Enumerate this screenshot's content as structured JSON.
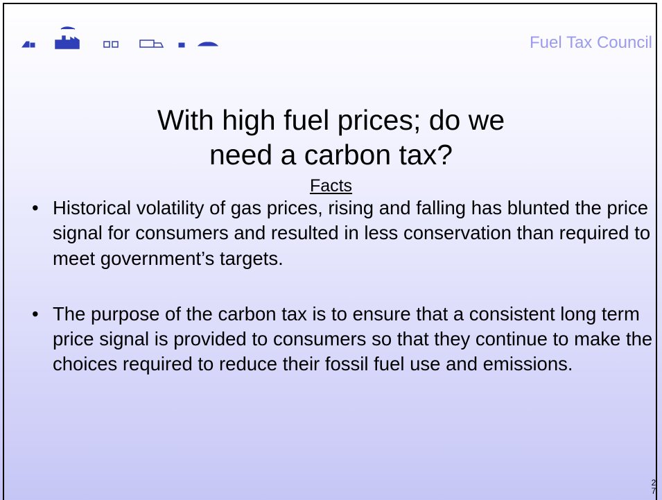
{
  "header": {
    "brand": "Fuel Tax Council"
  },
  "title_lines": [
    "With high fuel prices; do we",
    "need a carbon tax?"
  ],
  "subheading": "Facts",
  "bullets": [
    "Historical volatility of gas prices, rising and falling has blunted the price signal for consumers and resulted in less conservation than required to meet government’s targets.",
    "The purpose of the carbon tax is to ensure that a consistent long term price signal is provided to consumers so that they continue to make the choices required to reduce their fossil fuel use and emissions."
  ],
  "page_number": "27"
}
